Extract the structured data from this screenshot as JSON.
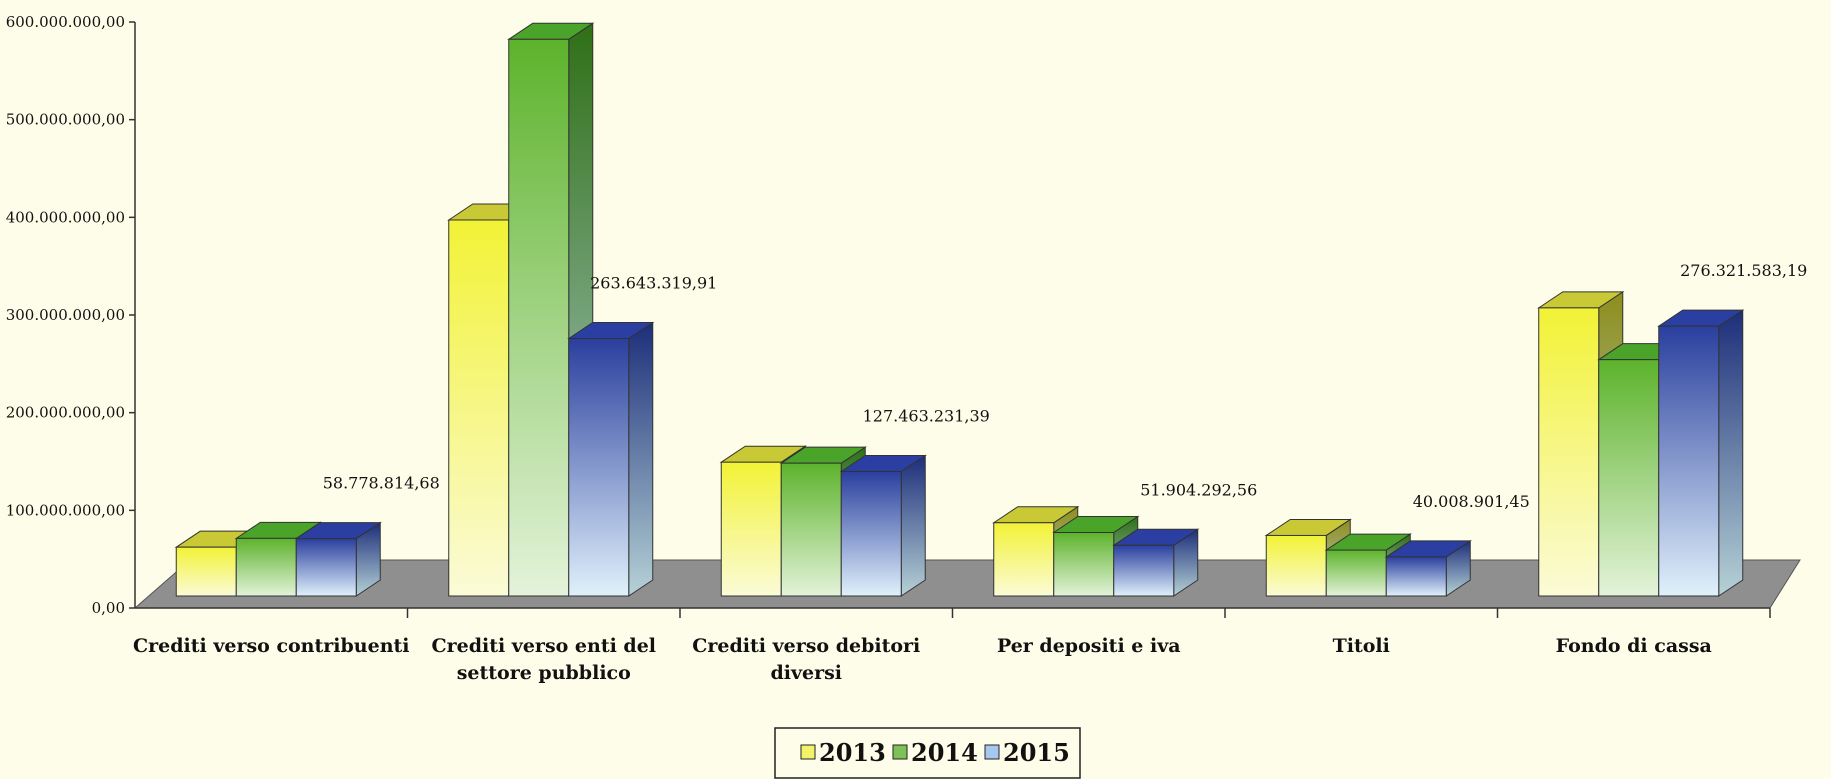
{
  "chart_data": {
    "type": "bar",
    "title": "",
    "xlabel": "",
    "ylabel": "",
    "ylim": [
      0,
      600000000
    ],
    "yticks": [
      0,
      100000000,
      200000000,
      300000000,
      400000000,
      500000000,
      600000000
    ],
    "ytick_labels": [
      "0,00",
      "100.000.000,00",
      "200.000.000,00",
      "300.000.000,00",
      "400.000.000,00",
      "500.000.000,00",
      "600.000.000,00"
    ],
    "categories": [
      [
        "Crediti verso contribuenti"
      ],
      [
        "Crediti verso enti del",
        "settore pubblico"
      ],
      [
        "Crediti verso debitori",
        "diversi"
      ],
      [
        "Per depositi e iva"
      ],
      [
        "Titoli"
      ],
      [
        "Fondo di cassa"
      ]
    ],
    "series": [
      {
        "name": "2013",
        "color": "#e8e830",
        "values": [
          50000000,
          385000000,
          137000000,
          75000000,
          62000000,
          295000000
        ]
      },
      {
        "name": "2014",
        "color": "#5fb52e",
        "values": [
          59000000,
          570000000,
          136000000,
          65000000,
          47000000,
          242000000
        ]
      },
      {
        "name": "2015",
        "color": "#2a3fa0",
        "values": [
          58778814.68,
          263643319.91,
          127463231.39,
          51904292.56,
          40008901.45,
          276321583.19
        ]
      }
    ],
    "data_labels": [
      "58.778.814,68",
      "263.643.319,91",
      "127.463.231,39",
      "51.904.292,56",
      "40.008.901,45",
      "276.321.583,19"
    ],
    "grid": false,
    "legend": "bottom",
    "style": "3d-column"
  }
}
